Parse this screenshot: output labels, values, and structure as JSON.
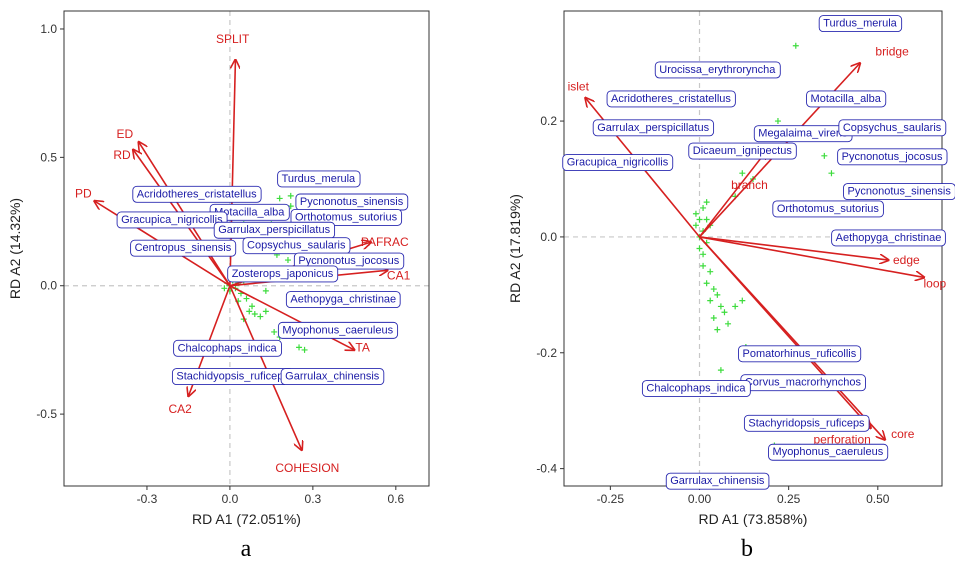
{
  "chart_data": [
    {
      "type": "scatter",
      "panel_label": "a",
      "xlabel": "RD A1 (72.051%)",
      "ylabel": "RD A2 (14.32%)",
      "xlim": [
        -0.6,
        0.72
      ],
      "ylim": [
        -0.78,
        1.07
      ],
      "xticks": [
        -0.3,
        0.0,
        0.3,
        0.6
      ],
      "xtick_labels": [
        "-0.3",
        "0.0",
        "0.3",
        "0.6"
      ],
      "yticks": [
        -0.5,
        0.0,
        0.5,
        1.0
      ],
      "ytick_labels": [
        "-0.5",
        "0.0",
        "0.5",
        "1.0"
      ],
      "arrows": [
        {
          "label": "SPLIT",
          "x": 0.02,
          "y": 0.88,
          "lx": 0.01,
          "ly": 0.96
        },
        {
          "label": "ED",
          "x": -0.33,
          "y": 0.56,
          "lx": -0.38,
          "ly": 0.59
        },
        {
          "label": "RD",
          "x": -0.35,
          "y": 0.53,
          "lx": -0.39,
          "ly": 0.51
        },
        {
          "label": "PD",
          "x": -0.49,
          "y": 0.33,
          "lx": -0.53,
          "ly": 0.36
        },
        {
          "label": "PAFRAC",
          "x": 0.51,
          "y": 0.17,
          "lx": 0.56,
          "ly": 0.17
        },
        {
          "label": "CA1",
          "x": 0.57,
          "y": 0.06,
          "lx": 0.61,
          "ly": 0.04
        },
        {
          "label": "TA",
          "x": 0.45,
          "y": -0.25,
          "lx": 0.48,
          "ly": -0.24
        },
        {
          "label": "CA2",
          "x": -0.15,
          "y": -0.43,
          "lx": -0.18,
          "ly": -0.48
        },
        {
          "label": "COHESION",
          "x": 0.26,
          "y": -0.64,
          "lx": 0.28,
          "ly": -0.71
        }
      ],
      "species": [
        {
          "label": "Turdus_merula",
          "x": 0.32,
          "y": 0.42
        },
        {
          "label": "Acridotheres_cristatellus",
          "x": -0.12,
          "y": 0.36
        },
        {
          "label": "Pycnonotus_sinensis",
          "x": 0.44,
          "y": 0.33
        },
        {
          "label": "Motacilla_alba",
          "x": 0.07,
          "y": 0.29
        },
        {
          "label": "Orthotomus_sutorius",
          "x": 0.42,
          "y": 0.27
        },
        {
          "label": "Gracupica_nigricollis",
          "x": -0.21,
          "y": 0.26
        },
        {
          "label": "Garrulax_perspicillatus",
          "x": 0.16,
          "y": 0.22
        },
        {
          "label": "Copsychus_saularis",
          "x": 0.24,
          "y": 0.16
        },
        {
          "label": "Centropus_sinensis",
          "x": -0.17,
          "y": 0.15
        },
        {
          "label": "Pycnonotus_jocosus",
          "x": 0.43,
          "y": 0.1
        },
        {
          "label": "Zosterops_japonicus",
          "x": 0.19,
          "y": 0.05
        },
        {
          "label": "Aethopyga_christinae",
          "x": 0.41,
          "y": -0.05
        },
        {
          "label": "Myophonus_caeruleus",
          "x": 0.39,
          "y": -0.17
        },
        {
          "label": "Chalcophaps_indica",
          "x": -0.01,
          "y": -0.24
        },
        {
          "label": "Stachidyopsis_ruficeps",
          "x": 0.01,
          "y": -0.35
        },
        {
          "label": "Garrulax_chinensis",
          "x": 0.37,
          "y": -0.35
        }
      ],
      "points": [
        [
          0.0,
          0.0
        ],
        [
          0.01,
          0.02
        ],
        [
          -0.01,
          0.01
        ],
        [
          0.02,
          -0.01
        ],
        [
          0.0,
          -0.02
        ],
        [
          0.03,
          0.01
        ],
        [
          -0.02,
          -0.01
        ],
        [
          0.01,
          0.04
        ],
        [
          0.04,
          -0.03
        ],
        [
          0.05,
          0.02
        ],
        [
          0.02,
          0.05
        ],
        [
          0.03,
          -0.06
        ],
        [
          0.06,
          -0.05
        ],
        [
          0.07,
          -0.1
        ],
        [
          0.09,
          -0.11
        ],
        [
          0.11,
          -0.12
        ],
        [
          0.08,
          -0.08
        ],
        [
          0.05,
          -0.13
        ],
        [
          0.13,
          -0.1
        ],
        [
          0.16,
          -0.18
        ],
        [
          0.18,
          -0.2
        ],
        [
          0.25,
          -0.24
        ],
        [
          0.27,
          -0.25
        ],
        [
          0.26,
          -0.19
        ],
        [
          0.15,
          0.24
        ],
        [
          0.2,
          0.27
        ],
        [
          0.22,
          0.31
        ],
        [
          0.18,
          0.34
        ],
        [
          0.27,
          0.23
        ],
        [
          0.3,
          0.18
        ],
        [
          0.17,
          0.12
        ],
        [
          0.21,
          0.1
        ],
        [
          0.24,
          0.06
        ],
        [
          -0.04,
          0.3
        ],
        [
          0.08,
          0.17
        ],
        [
          0.05,
          0.24
        ],
        [
          0.22,
          0.35
        ],
        [
          0.13,
          -0.02
        ]
      ],
      "colors": {
        "arrow": "#d62020",
        "species_text": "#1a1aa6",
        "species_box": "#2a2ab0",
        "point": "#3ddc3d",
        "guide": "#c8c8c8"
      }
    },
    {
      "type": "scatter",
      "panel_label": "b",
      "xlabel": "RD A1 (73.858%)",
      "ylabel": "RD A2 (17.819%)",
      "xlim": [
        -0.38,
        0.68
      ],
      "ylim": [
        -0.43,
        0.39
      ],
      "xticks": [
        -0.25,
        0.0,
        0.25,
        0.5
      ],
      "xtick_labels": [
        "-0.25",
        "0.00",
        "0.25",
        "0.50"
      ],
      "yticks": [
        -0.4,
        -0.2,
        0.0,
        0.2
      ],
      "ytick_labels": [
        "-0.4",
        "-0.2",
        "0.0",
        "0.2"
      ],
      "arrows": [
        {
          "label": "bridge",
          "x": 0.45,
          "y": 0.3,
          "lx": 0.54,
          "ly": 0.32
        },
        {
          "label": "islet",
          "x": -0.32,
          "y": 0.24,
          "lx": -0.34,
          "ly": 0.26
        },
        {
          "label": "branch",
          "x": 0.19,
          "y": 0.15,
          "lx": 0.14,
          "ly": 0.09
        },
        {
          "label": "edge",
          "x": 0.53,
          "y": -0.04,
          "lx": 0.58,
          "ly": -0.04
        },
        {
          "label": "loop",
          "x": 0.63,
          "y": -0.07,
          "lx": 0.66,
          "ly": -0.08
        },
        {
          "label": "core",
          "x": 0.52,
          "y": -0.35,
          "lx": 0.57,
          "ly": -0.34
        },
        {
          "label": "perforation",
          "x": 0.48,
          "y": -0.33,
          "lx": 0.4,
          "ly": -0.35
        }
      ],
      "species": [
        {
          "label": "Turdus_merula",
          "x": 0.45,
          "y": 0.37
        },
        {
          "label": "Urocissa_erythroryncha",
          "x": 0.05,
          "y": 0.29
        },
        {
          "label": "Acridotheres_cristatellus",
          "x": -0.08,
          "y": 0.24
        },
        {
          "label": "Motacilla_alba",
          "x": 0.41,
          "y": 0.24
        },
        {
          "label": "Garrulax_perspicillatus",
          "x": -0.13,
          "y": 0.19
        },
        {
          "label": "Megalaima_virens",
          "x": 0.29,
          "y": 0.18
        },
        {
          "label": "Copsychus_saularis",
          "x": 0.54,
          "y": 0.19
        },
        {
          "label": "Dicaeum_ignipectus",
          "x": 0.12,
          "y": 0.15
        },
        {
          "label": "Pycnonotus_jocosus",
          "x": 0.54,
          "y": 0.14
        },
        {
          "label": "Gracupica_nigricollis",
          "x": -0.23,
          "y": 0.13
        },
        {
          "label": "Pycnonotus_sinensis",
          "x": 0.56,
          "y": 0.08
        },
        {
          "label": "Orthotomus_sutorius",
          "x": 0.36,
          "y": 0.05
        },
        {
          "label": "Aethopyga_christinae",
          "x": 0.53,
          "y": 0.0
        },
        {
          "label": "Pomatorhinus_ruficollis",
          "x": 0.28,
          "y": -0.2
        },
        {
          "label": "Corvus_macrorhynchos",
          "x": 0.29,
          "y": -0.25
        },
        {
          "label": "Chalcophaps_indica",
          "x": -0.01,
          "y": -0.26
        },
        {
          "label": "Stachyridopsis_ruficeps",
          "x": 0.3,
          "y": -0.32
        },
        {
          "label": "Myophonus_caeruleus",
          "x": 0.36,
          "y": -0.37
        },
        {
          "label": "Garrulax_chinensis",
          "x": 0.05,
          "y": -0.42
        }
      ],
      "points": [
        [
          0.0,
          0.0
        ],
        [
          0.01,
          0.01
        ],
        [
          -0.01,
          0.02
        ],
        [
          0.02,
          -0.01
        ],
        [
          0.0,
          0.03
        ],
        [
          0.01,
          0.05
        ],
        [
          -0.01,
          0.04
        ],
        [
          0.02,
          0.06
        ],
        [
          0.0,
          -0.02
        ],
        [
          0.01,
          -0.03
        ],
        [
          0.03,
          0.02
        ],
        [
          0.02,
          0.03
        ],
        [
          0.01,
          -0.05
        ],
        [
          0.03,
          -0.06
        ],
        [
          0.02,
          -0.08
        ],
        [
          0.04,
          -0.09
        ],
        [
          0.03,
          -0.11
        ],
        [
          0.05,
          -0.1
        ],
        [
          0.06,
          -0.12
        ],
        [
          0.04,
          -0.14
        ],
        [
          0.07,
          -0.13
        ],
        [
          0.05,
          -0.16
        ],
        [
          0.08,
          -0.15
        ],
        [
          0.1,
          -0.12
        ],
        [
          0.12,
          -0.11
        ],
        [
          0.13,
          -0.19
        ],
        [
          0.06,
          -0.23
        ],
        [
          0.21,
          -0.36
        ],
        [
          0.27,
          0.33
        ],
        [
          0.22,
          0.2
        ],
        [
          0.2,
          0.17
        ],
        [
          0.16,
          0.14
        ],
        [
          0.15,
          0.1
        ],
        [
          0.12,
          0.11
        ],
        [
          0.1,
          0.07
        ],
        [
          0.18,
          0.15
        ],
        [
          0.35,
          0.14
        ],
        [
          0.37,
          0.11
        ]
      ],
      "colors": {
        "arrow": "#d62020",
        "species_text": "#1a1aa6",
        "species_box": "#2a2ab0",
        "point": "#3ddc3d",
        "guide": "#c8c8c8"
      }
    }
  ]
}
